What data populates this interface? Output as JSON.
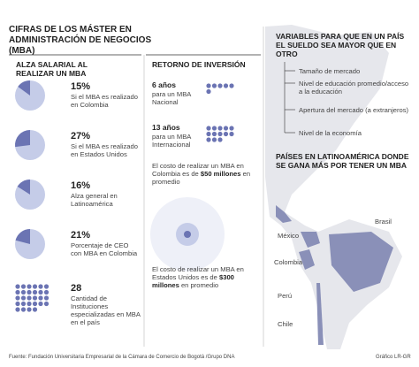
{
  "header": {
    "title": "CIFRAS DE LOS MÁSTER EN ADMINISTRACIÓN DE NEGOCIOS (MBA)"
  },
  "salary": {
    "title": "ALZA SALARIAL AL REALIZAR UN MBA",
    "items": [
      {
        "value": 15,
        "value_label": "15%",
        "text": "Si el MBA es realizado en Colombia"
      },
      {
        "value": 27,
        "value_label": "27%",
        "text": "Si el MBA es realizado en Estados Unidos"
      },
      {
        "value": 16,
        "value_label": "16%",
        "text": "Alza general en Latinoamérica"
      },
      {
        "value": 21,
        "value_label": "21%",
        "text": "Porcentaje de CEO con MBA en Colombia"
      }
    ],
    "count": {
      "value": 28,
      "text": "Cantidad de Instituciones especializadas en MBA en el país"
    }
  },
  "roi": {
    "title": "RETORNO DE INVERSIÓN",
    "items": [
      {
        "value": 6,
        "value_label": "6 años",
        "text": "para un MBA Nacional"
      },
      {
        "value": 13,
        "value_label": "13 años",
        "text": "para un MBA Internacional"
      }
    ],
    "costs": [
      {
        "pre": "El costo de realizar un MBA en Colombia es de",
        "bold": "$50 millones",
        "post": "en promedio"
      },
      {
        "pre": "El costo de realizar un MBA en Estados Unidos es de",
        "bold": "$300 millones",
        "post": "en promedio"
      }
    ]
  },
  "variables": {
    "title": "VARIABLES PARA QUE EN UN PAÍS EL SUELDO SEA MAYOR QUE EN OTRO",
    "items": [
      "Tamaño de mercado",
      "Nivel de educación promedio/acceso a la educación",
      "Apertura del mercado (a extranjeros)",
      "Nivel de la economía"
    ]
  },
  "countries": {
    "title": "PAÍSES EN LATINOAMÉRICA DONDE SE GANA MÁS POR TENER UN MBA",
    "names": [
      "Brasil",
      "México",
      "Colombia",
      "Perú",
      "Chile"
    ]
  },
  "footer": {
    "source": "Fuente: Fundación Universitaria Empresarial de la Cámara de Comercio de Bogotá /Grupo DNA",
    "credit": "Gráfico LR-GR"
  }
}
